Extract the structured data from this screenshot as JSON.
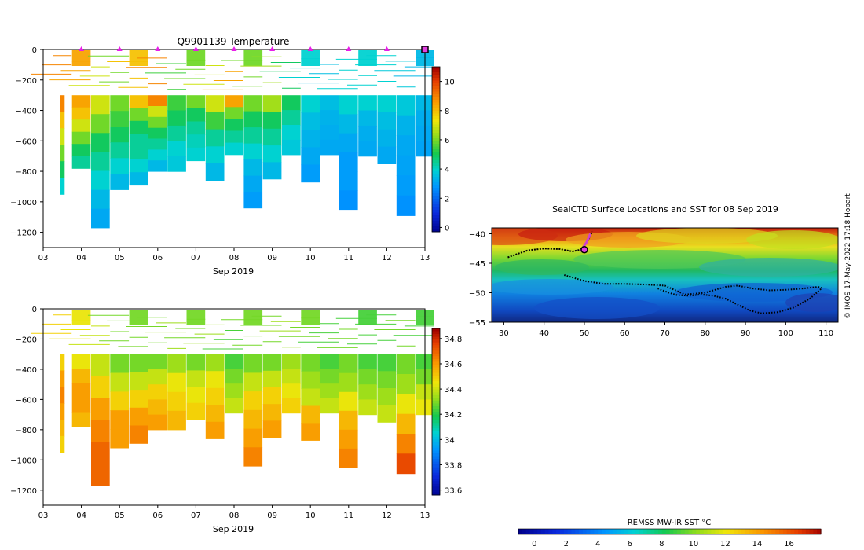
{
  "chart_data": [
    {
      "type": "heatmap",
      "title": "Q9901139  Temperature",
      "xlabel": "Sep 2019",
      "ylabel": "",
      "x_ticks": [
        "03",
        "04",
        "05",
        "06",
        "07",
        "08",
        "09",
        "10",
        "11",
        "12",
        "13"
      ],
      "y_ticks": [
        0,
        -200,
        -400,
        -600,
        -800,
        -1000,
        -1200
      ],
      "xlim": [
        3,
        13
      ],
      "ylim": [
        -1300,
        0
      ],
      "profile_markers_days": [
        4,
        5,
        6,
        7,
        8,
        9,
        10,
        11,
        12,
        13
      ],
      "colorbar": {
        "ticks": [
          0,
          2,
          4,
          6,
          8,
          10
        ],
        "range": [
          -0.3,
          11
        ]
      },
      "profiles": [
        {
          "x": 3.5,
          "depth": 950,
          "vals": [
            9,
            8,
            7,
            6,
            5,
            4
          ]
        },
        {
          "x": 4.0,
          "depth": 780,
          "vals": [
            8.5,
            8,
            7,
            6,
            5,
            4.5
          ]
        },
        {
          "x": 4.5,
          "depth": 1170,
          "vals": [
            7,
            6,
            5,
            4.5,
            4,
            3.5,
            3.2
          ]
        },
        {
          "x": 5.0,
          "depth": 920,
          "vals": [
            6,
            5.5,
            5,
            4.5,
            4,
            3.5
          ]
        },
        {
          "x": 5.5,
          "depth": 890,
          "vals": [
            8,
            6,
            5,
            4.5,
            4.5,
            4,
            3.5
          ]
        },
        {
          "x": 6.0,
          "depth": 800,
          "vals": [
            9,
            7,
            6,
            5,
            4.5,
            4,
            3.5
          ]
        },
        {
          "x": 6.5,
          "depth": 800,
          "vals": [
            5.5,
            5,
            4.5,
            4,
            3.8
          ]
        },
        {
          "x": 7.0,
          "depth": 730,
          "vals": [
            6,
            5,
            4.5,
            4.2,
            4
          ]
        },
        {
          "x": 7.5,
          "depth": 860,
          "vals": [
            7,
            5.5,
            4.5,
            4,
            3.5
          ]
        },
        {
          "x": 8.0,
          "depth": 690,
          "vals": [
            8.5,
            6,
            5,
            4.5,
            4
          ]
        },
        {
          "x": 8.5,
          "depth": 1040,
          "vals": [
            6,
            5,
            4.5,
            4,
            3.5,
            3.2,
            3
          ]
        },
        {
          "x": 9.0,
          "depth": 850,
          "vals": [
            6.5,
            5,
            4.5,
            4,
            3.5
          ]
        },
        {
          "x": 9.5,
          "depth": 690,
          "vals": [
            5,
            4.5,
            4,
            3.8
          ]
        },
        {
          "x": 10.0,
          "depth": 870,
          "vals": [
            4,
            3.6,
            3.4,
            3.2,
            3
          ]
        },
        {
          "x": 10.5,
          "depth": 690,
          "vals": [
            3.6,
            3.4,
            3.3,
            3.2
          ]
        },
        {
          "x": 11.0,
          "depth": 1050,
          "vals": [
            4,
            3.5,
            3.2,
            3,
            3,
            2.8
          ]
        },
        {
          "x": 11.5,
          "depth": 700,
          "vals": [
            4,
            3.5,
            3.3,
            3.2
          ]
        },
        {
          "x": 12.0,
          "depth": 750,
          "vals": [
            4,
            3.6,
            3.4,
            3.2
          ]
        },
        {
          "x": 12.5,
          "depth": 1090,
          "vals": [
            3.8,
            3.4,
            3.2,
            3.1,
            3,
            2.8
          ]
        },
        {
          "x": 13.0,
          "depth": 700,
          "vals": [
            3.5,
            3.3,
            3.2,
            3.1
          ]
        }
      ]
    },
    {
      "type": "heatmap",
      "title": "",
      "xlabel": "Sep 2019",
      "ylabel": "",
      "x_ticks": [
        "03",
        "04",
        "05",
        "06",
        "07",
        "08",
        "09",
        "10",
        "11",
        "12",
        "13"
      ],
      "y_ticks": [
        0,
        -200,
        -400,
        -600,
        -800,
        -1000,
        -1200
      ],
      "xlim": [
        3,
        13
      ],
      "ylim": [
        -1300,
        0
      ],
      "colorbar": {
        "ticks": [
          33.6,
          33.8,
          34,
          34.2,
          34.4,
          34.6,
          34.8
        ],
        "range": [
          33.56,
          34.88
        ]
      },
      "profiles": [
        {
          "x": 3.5,
          "depth": 950,
          "vals": [
            34.5,
            34.6,
            34.65,
            34.6,
            34.55,
            34.5
          ]
        },
        {
          "x": 4.0,
          "depth": 780,
          "vals": [
            34.45,
            34.55,
            34.6,
            34.6,
            34.55
          ]
        },
        {
          "x": 4.5,
          "depth": 1170,
          "vals": [
            34.4,
            34.5,
            34.6,
            34.65,
            34.7,
            34.7
          ]
        },
        {
          "x": 5.0,
          "depth": 920,
          "vals": [
            34.3,
            34.4,
            34.5,
            34.6,
            34.6
          ]
        },
        {
          "x": 5.5,
          "depth": 890,
          "vals": [
            34.3,
            34.4,
            34.5,
            34.6,
            34.65
          ]
        },
        {
          "x": 6.0,
          "depth": 800,
          "vals": [
            34.3,
            34.4,
            34.5,
            34.55,
            34.6
          ]
        },
        {
          "x": 6.5,
          "depth": 800,
          "vals": [
            34.35,
            34.45,
            34.5,
            34.55
          ]
        },
        {
          "x": 7.0,
          "depth": 730,
          "vals": [
            34.3,
            34.4,
            34.45,
            34.5
          ]
        },
        {
          "x": 7.5,
          "depth": 860,
          "vals": [
            34.35,
            34.45,
            34.5,
            34.55,
            34.6
          ]
        },
        {
          "x": 8.0,
          "depth": 690,
          "vals": [
            34.25,
            34.3,
            34.35,
            34.4
          ]
        },
        {
          "x": 8.5,
          "depth": 1040,
          "vals": [
            34.3,
            34.4,
            34.5,
            34.55,
            34.6,
            34.65
          ]
        },
        {
          "x": 9.0,
          "depth": 850,
          "vals": [
            34.3,
            34.4,
            34.5,
            34.55,
            34.6
          ]
        },
        {
          "x": 9.5,
          "depth": 690,
          "vals": [
            34.35,
            34.4,
            34.45,
            34.5
          ]
        },
        {
          "x": 10.0,
          "depth": 870,
          "vals": [
            34.3,
            34.35,
            34.4,
            34.55,
            34.6
          ]
        },
        {
          "x": 10.5,
          "depth": 690,
          "vals": [
            34.25,
            34.3,
            34.35,
            34.4
          ]
        },
        {
          "x": 11.0,
          "depth": 1050,
          "vals": [
            34.3,
            34.35,
            34.45,
            34.55,
            34.6,
            34.65
          ]
        },
        {
          "x": 11.5,
          "depth": 700,
          "vals": [
            34.25,
            34.3,
            34.35,
            34.4
          ]
        },
        {
          "x": 12.0,
          "depth": 750,
          "vals": [
            34.25,
            34.3,
            34.35,
            34.4
          ]
        },
        {
          "x": 12.5,
          "depth": 1090,
          "vals": [
            34.3,
            34.35,
            34.45,
            34.55,
            34.65,
            34.75
          ]
        },
        {
          "x": 13.0,
          "depth": 700,
          "vals": [
            34.25,
            34.3,
            34.4,
            34.45
          ]
        }
      ]
    },
    {
      "type": "map",
      "title": "SealCTD Surface Locations and SST for 08 Sep 2019",
      "x_ticks": [
        30,
        40,
        50,
        60,
        70,
        80,
        90,
        100,
        110
      ],
      "y_ticks": [
        -40,
        -45,
        -50,
        -55
      ],
      "xlim": [
        27,
        113
      ],
      "ylim": [
        -55,
        -39
      ],
      "colorbar_label": "REMSS MW-IR SST °C",
      "colorbar_ticks": [
        0,
        2,
        4,
        6,
        8,
        10,
        12,
        14,
        16
      ],
      "colorbar_range": [
        -1,
        18
      ],
      "credit": "© IMOS 17-May-2022 17:18 Hobart",
      "track_lon": [
        31,
        33,
        36,
        40,
        44,
        47,
        49,
        50,
        51,
        52
      ],
      "track_lat": [
        -44,
        -43.5,
        -42.8,
        -42.5,
        -42.6,
        -43,
        -42.7,
        -42,
        -41,
        -39.6
      ],
      "loop_lon": [
        45,
        50,
        55,
        60,
        65,
        70,
        75,
        80,
        85,
        88,
        92,
        96,
        100,
        104,
        108,
        109,
        106,
        102,
        98,
        94,
        91,
        88,
        85,
        82,
        79,
        76,
        73,
        71,
        69,
        68
      ],
      "loop_lat": [
        -47,
        -48,
        -48.5,
        -48.5,
        -48.6,
        -48.8,
        -50.3,
        -50,
        -49,
        -48.8,
        -49.3,
        -49.6,
        -49.5,
        -49.3,
        -49,
        -49.2,
        -51,
        -52.5,
        -53.3,
        -53.5,
        -53,
        -52,
        -51,
        -50.5,
        -50.3,
        -50.5,
        -50.4,
        -50,
        -49.5,
        -49.2
      ]
    }
  ]
}
